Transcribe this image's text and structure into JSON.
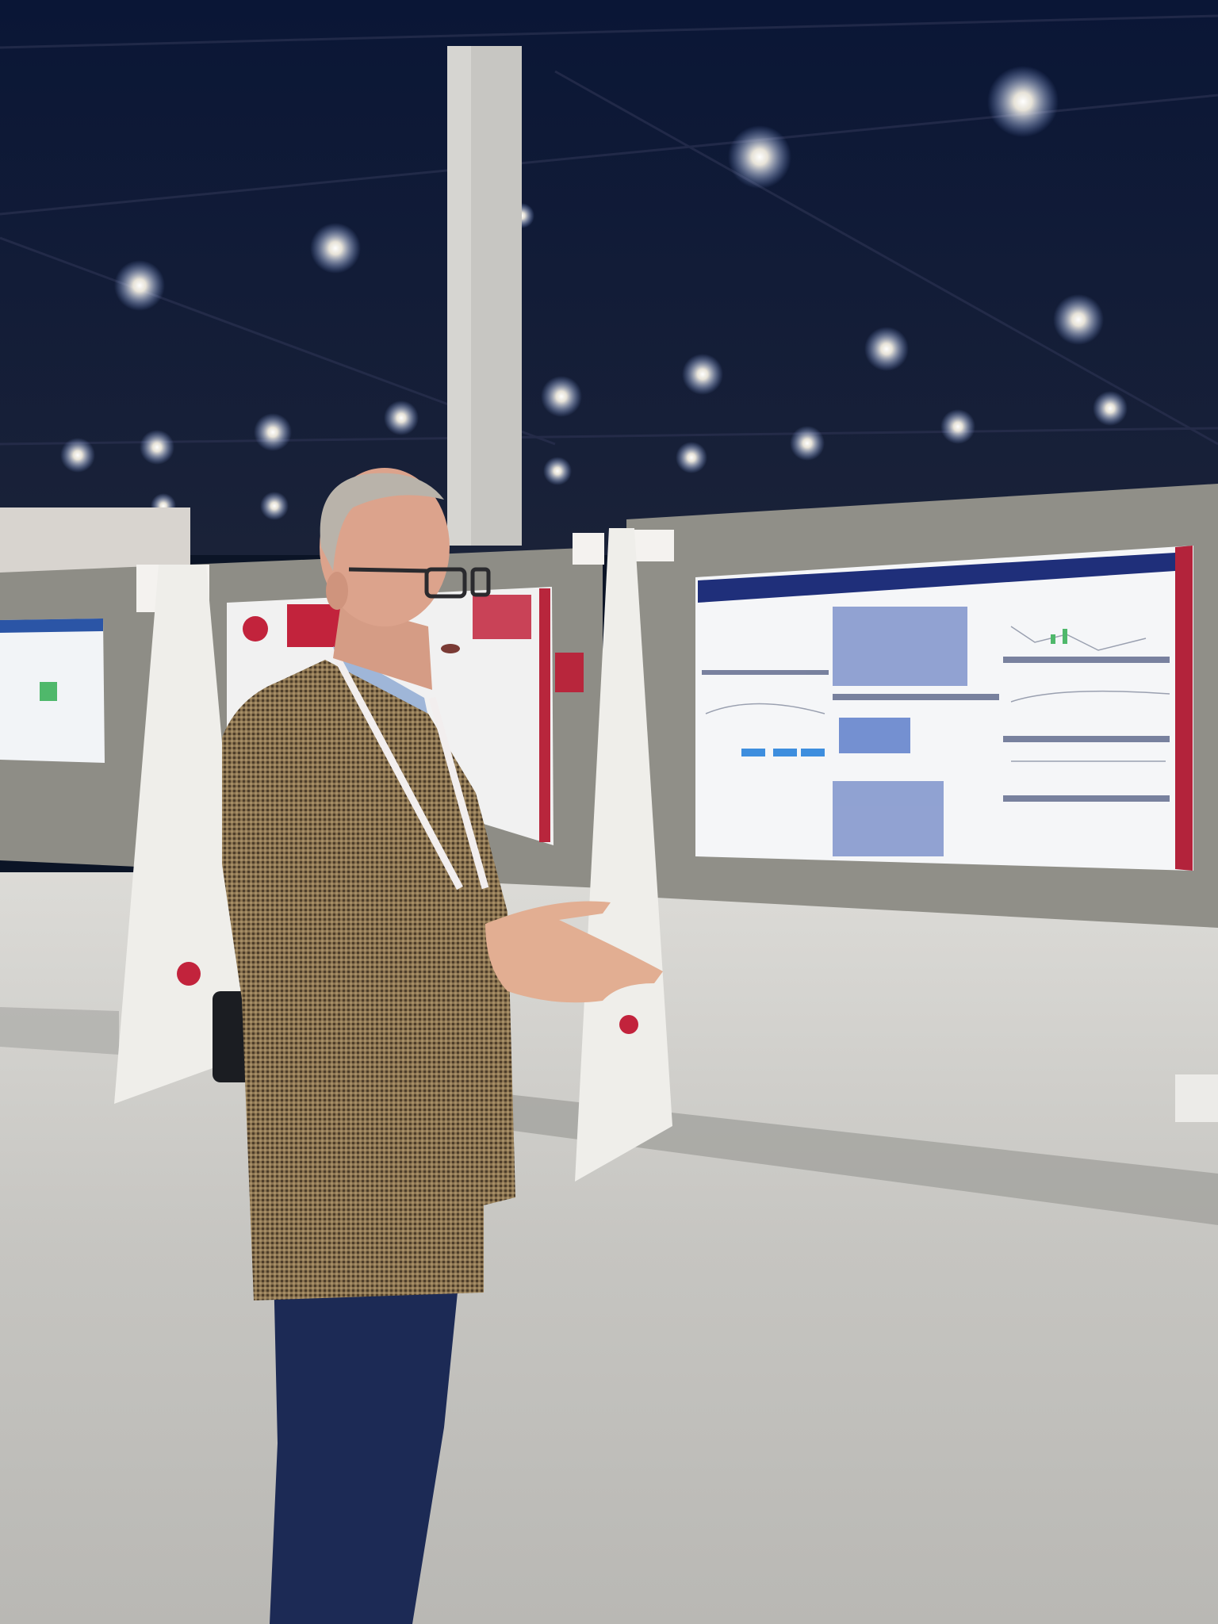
{
  "scene": {
    "description_tags": [],
    "colors": {
      "ceiling": "#0d1a3a",
      "wall_panel": "#8d8c84",
      "floor": "#c9c8c4",
      "poster_header": "#1f2f7a",
      "poster_accent": "#b3233b",
      "jacket": "#7a6445",
      "trousers": "#1c2a55",
      "shirt": "#9fb6d8",
      "stand": "#efeeea"
    }
  }
}
